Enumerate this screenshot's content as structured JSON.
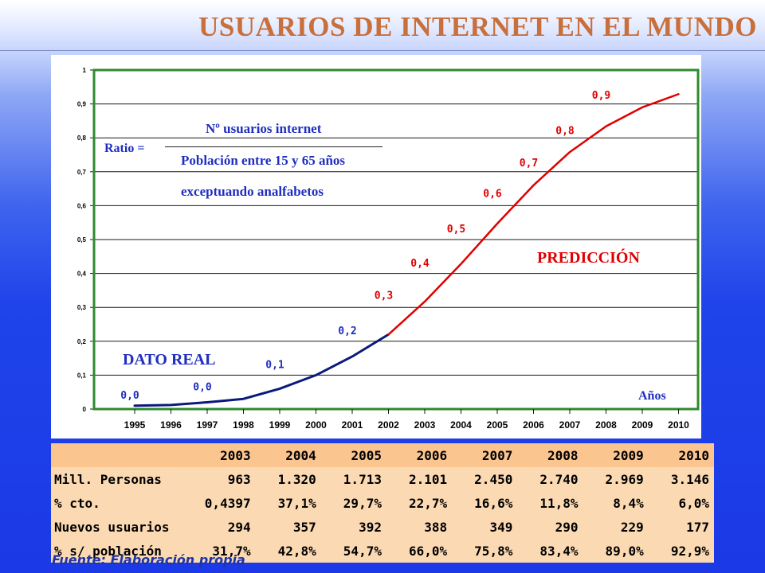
{
  "header": {
    "title": "USUARIOS DE INTERNET EN EL MUNDO"
  },
  "colors": {
    "title": "#c86f3c",
    "real": "#0b1a7a",
    "prediction": "#e00000",
    "grid": "#1a1a1a",
    "frame": "#2e8b2e",
    "annotation_blue": "#1f2ec0"
  },
  "chart_data": {
    "type": "line",
    "title": "USUARIOS DE INTERNET EN EL MUNDO",
    "xlabel": "Años",
    "ylabel": "",
    "x": [
      "1995",
      "1996",
      "1997",
      "1998",
      "1999",
      "2000",
      "2001",
      "2002",
      "2003",
      "2004",
      "2005",
      "2006",
      "2007",
      "2008",
      "2009",
      "2010"
    ],
    "ylim": [
      0,
      1
    ],
    "y_ticks": [
      "0",
      "0,1",
      "0,2",
      "0,3",
      "0,4",
      "0,5",
      "0,6",
      "0,7",
      "0,8",
      "0,9",
      "1"
    ],
    "grid": true,
    "series": [
      {
        "name": "DATO REAL",
        "x": [
          "1995",
          "1996",
          "1997",
          "1998",
          "1999",
          "2000",
          "2001",
          "2002"
        ],
        "values": [
          0.01,
          0.012,
          0.02,
          0.03,
          0.06,
          0.1,
          0.155,
          0.22
        ]
      },
      {
        "name": "PREDICCIÓN",
        "x": [
          "2002",
          "2003",
          "2004",
          "2005",
          "2006",
          "2007",
          "2008",
          "2009",
          "2010"
        ],
        "values": [
          0.22,
          0.317,
          0.428,
          0.547,
          0.66,
          0.758,
          0.834,
          0.89,
          0.929
        ]
      }
    ],
    "point_labels": [
      {
        "x": "1995",
        "y": 0.04,
        "text": "0,0",
        "color": "blue"
      },
      {
        "x": "1997",
        "y": 0.065,
        "text": "0,0",
        "color": "blue"
      },
      {
        "x": "1999",
        "y": 0.13,
        "text": "0,1",
        "color": "blue"
      },
      {
        "x": "2001",
        "y": 0.23,
        "text": "0,2",
        "color": "blue"
      },
      {
        "x": "2002",
        "y": 0.335,
        "text": "0,3",
        "color": "red"
      },
      {
        "x": "2003",
        "y": 0.43,
        "text": "0,4",
        "color": "red"
      },
      {
        "x": "2004",
        "y": 0.53,
        "text": "0,5",
        "color": "red"
      },
      {
        "x": "2005",
        "y": 0.635,
        "text": "0,6",
        "color": "red"
      },
      {
        "x": "2006",
        "y": 0.725,
        "text": "0,7",
        "color": "red"
      },
      {
        "x": "2007",
        "y": 0.82,
        "text": "0,8",
        "color": "red"
      },
      {
        "x": "2008",
        "y": 0.925,
        "text": "0,9",
        "color": "red"
      }
    ],
    "annotations": {
      "ratio_label": "Ratio =",
      "numerator": "Nº usuarios internet",
      "denominator_line1": "Población entre 15 y 65 años",
      "denominator_line2": "exceptuando analfabetos",
      "real_label": "DATO REAL",
      "prediction_label": "PREDICCIÓN",
      "axis_label": "Años"
    }
  },
  "table": {
    "columns": [
      "2003",
      "2004",
      "2005",
      "2006",
      "2007",
      "2008",
      "2009",
      "2010"
    ],
    "rows": [
      {
        "label": "Mill. Personas",
        "values": [
          "963",
          "1.320",
          "1.713",
          "2.101",
          "2.450",
          "2.740",
          "2.969",
          "3.146"
        ]
      },
      {
        "label": "% cto.",
        "values": [
          "0,4397",
          "37,1%",
          "29,7%",
          "22,7%",
          "16,6%",
          "11,8%",
          "8,4%",
          "6,0%"
        ]
      },
      {
        "label": "Nuevos usuarios",
        "values": [
          "294",
          "357",
          "392",
          "388",
          "349",
          "290",
          "229",
          "177"
        ]
      },
      {
        "label": "% s/ población",
        "values": [
          "31,7%",
          "42,8%",
          "54,7%",
          "66,0%",
          "75,8%",
          "83,4%",
          "89,0%",
          "92,9%"
        ]
      }
    ]
  },
  "footer": {
    "source": "Fuente: Elaboración propia"
  }
}
